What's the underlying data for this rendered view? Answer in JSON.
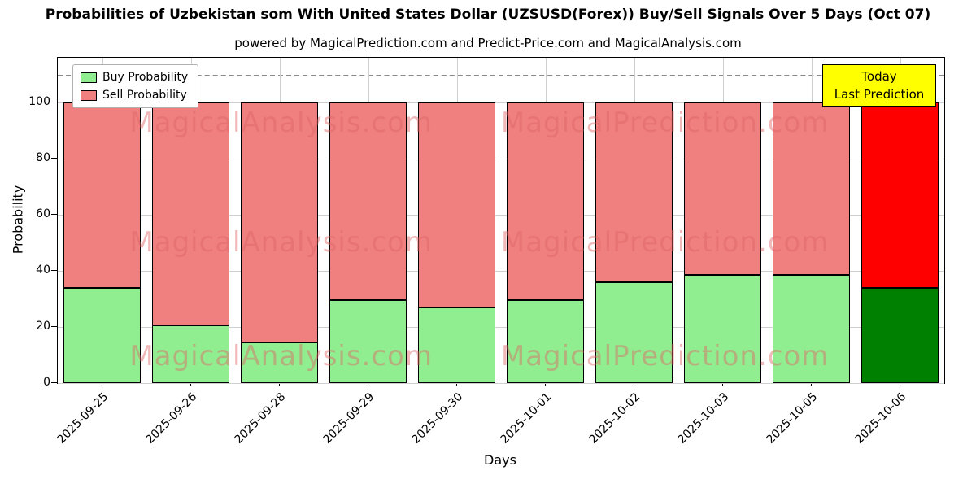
{
  "title": "Probabilities of Uzbekistan som With United States Dollar (UZSUSD(Forex)) Buy/Sell Signals Over 5 Days (Oct 07)",
  "subtitle": "powered by MagicalPrediction.com and Predict-Price.com and MagicalAnalysis.com",
  "chart_data": {
    "type": "bar",
    "stacked": true,
    "categories": [
      "2025-09-25",
      "2025-09-26",
      "2025-09-28",
      "2025-09-29",
      "2025-09-30",
      "2025-10-01",
      "2025-10-02",
      "2025-10-03",
      "2025-10-05",
      "2025-10-06"
    ],
    "series": [
      {
        "name": "Buy Probability",
        "color": "#90EE90",
        "today_color": "#008000",
        "values": [
          34,
          20.5,
          14.5,
          29.5,
          27,
          29.5,
          36,
          38.5,
          38.5,
          34
        ]
      },
      {
        "name": "Sell Probability",
        "color": "#F08080",
        "today_color": "#FF0000",
        "values": [
          66,
          79.5,
          85.5,
          70.5,
          73,
          70.5,
          64,
          61.5,
          61.5,
          66
        ]
      }
    ],
    "xlabel": "Days",
    "ylabel": "Probability",
    "yticks": [
      0,
      20,
      40,
      60,
      80,
      100
    ],
    "ylim": [
      0,
      116
    ],
    "dashed_line_y": 110,
    "grid": true,
    "legend_position": "upper-left",
    "today_category": "2025-10-06"
  },
  "annotation": {
    "line1": "Today",
    "line2": "Last Prediction",
    "bg": "#FFFF00"
  },
  "watermarks": {
    "texts": [
      "MagicalAnalysis.com",
      "MagicalPrediction.com"
    ],
    "color": "#E06464"
  }
}
